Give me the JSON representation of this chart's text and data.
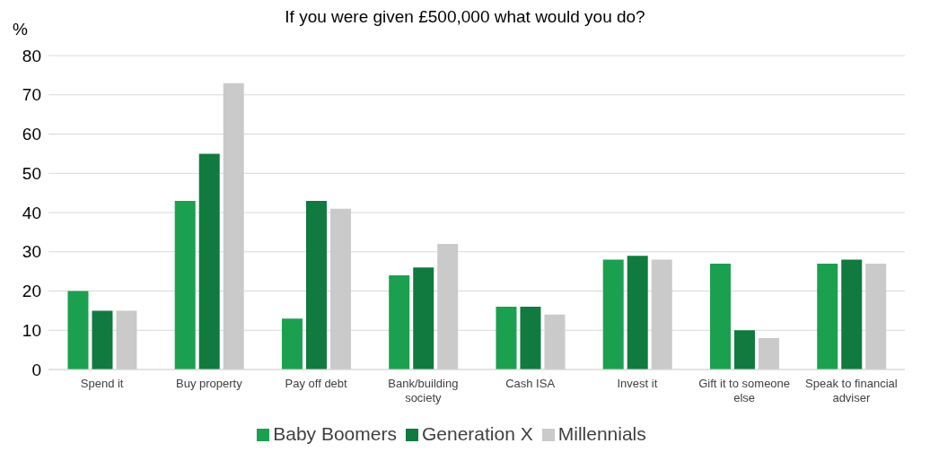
{
  "chart_data": {
    "type": "bar",
    "title": "If you were given £500,000 what would you do?",
    "ylabel": "%",
    "categories": [
      "Spend it",
      "Buy property",
      "Pay off debt",
      "Bank/building society",
      "Cash ISA",
      "Invest it",
      "Gift it to someone else",
      "Speak to financial adviser"
    ],
    "series": [
      {
        "name": "Baby Boomers",
        "color": "#1ba04f",
        "values": [
          20,
          43,
          13,
          24,
          16,
          28,
          27,
          27
        ]
      },
      {
        "name": "Generation X",
        "color": "#117a3f",
        "values": [
          15,
          55,
          43,
          26,
          16,
          29,
          10,
          28
        ]
      },
      {
        "name": "Millennials",
        "color": "#cacaca",
        "values": [
          15,
          73,
          41,
          32,
          14,
          28,
          8,
          27
        ]
      }
    ],
    "ylim": [
      0,
      80
    ],
    "yticks": [
      0,
      10,
      20,
      30,
      40,
      50,
      60,
      70,
      80
    ],
    "grid": "y",
    "legend": "bottom"
  }
}
